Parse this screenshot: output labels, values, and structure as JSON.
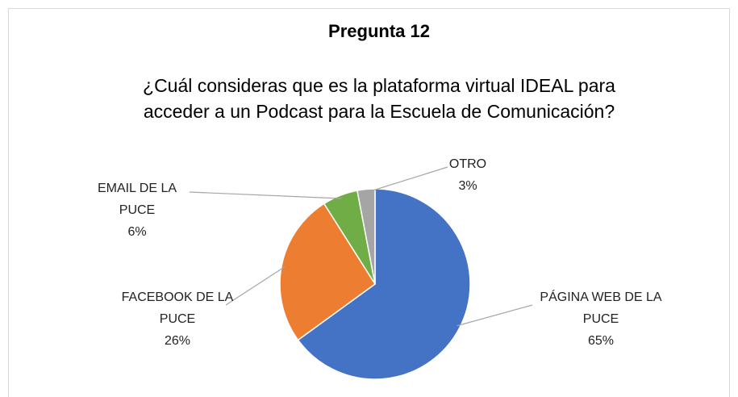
{
  "chart_data": {
    "type": "pie",
    "title": "Pregunta 12",
    "subtitle": "¿Cuál consideras que es la plataforma virtual IDEAL para acceder a un Podcast para la Escuela de Comunicación?",
    "categories": [
      "PÁGINA WEB DE LA PUCE",
      "FACEBOOK DE LA PUCE",
      "EMAIL DE LA PUCE",
      "OTRO"
    ],
    "values": [
      65,
      26,
      6,
      3
    ],
    "value_labels": [
      "65%",
      "26%",
      "6%",
      "3%"
    ],
    "colors": [
      "#4472c4",
      "#ed7d31",
      "#70ad47",
      "#a5a5a5"
    ]
  }
}
